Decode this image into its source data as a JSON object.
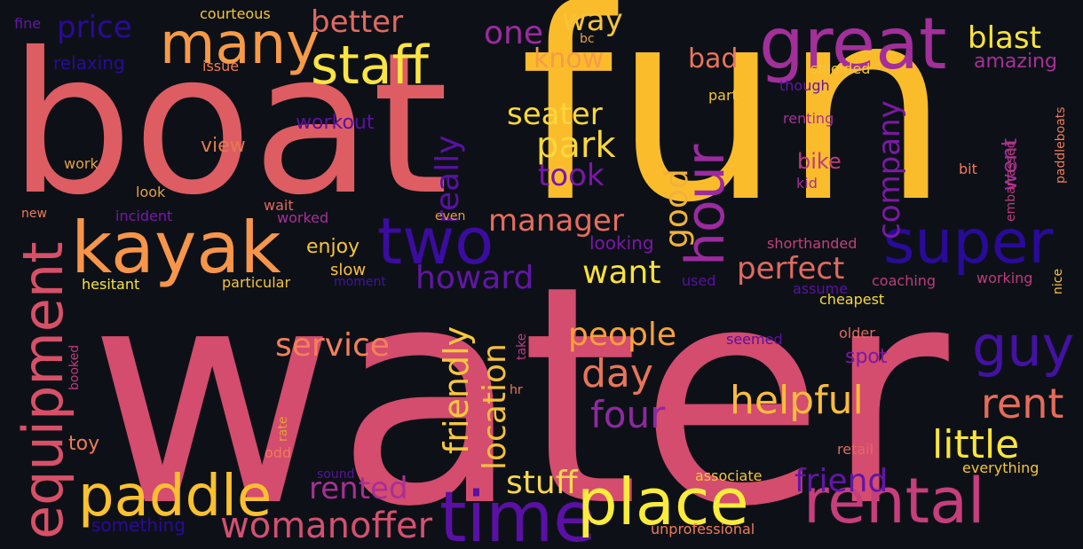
{
  "words": [
    {
      "text": "water",
      "color": "#d44c6e",
      "size": 340,
      "vertical": false
    },
    {
      "text": "fun",
      "color": "#fbbc2c",
      "size": 300,
      "vertical": false
    },
    {
      "text": "boat",
      "color": "#dd5d63",
      "size": 220,
      "vertical": false
    },
    {
      "text": "great",
      "color": "#a32f9b",
      "size": 80,
      "vertical": false
    },
    {
      "text": "many",
      "color": "#f79a47",
      "size": 64,
      "vertical": false
    },
    {
      "text": "kayak",
      "color": "#f7954b",
      "size": 80,
      "vertical": false
    },
    {
      "text": "staff",
      "color": "#fce443",
      "size": 60,
      "vertical": false
    },
    {
      "text": "two",
      "color": "#3a0ca0",
      "size": 72,
      "vertical": false
    },
    {
      "text": "super",
      "color": "#2a0a9a",
      "size": 68,
      "vertical": false
    },
    {
      "text": "hour",
      "color": "#9c2aa0",
      "size": 60,
      "vertical": true
    },
    {
      "text": "equipment",
      "color": "#d85068",
      "size": 62,
      "vertical": true
    },
    {
      "text": "paddle",
      "color": "#fcc030",
      "size": 64,
      "vertical": false
    },
    {
      "text": "time",
      "color": "#5a10a5",
      "size": 78,
      "vertical": false
    },
    {
      "text": "place",
      "color": "#faec3c",
      "size": 72,
      "vertical": false
    },
    {
      "text": "rental",
      "color": "#c63f7c",
      "size": 70,
      "vertical": false
    },
    {
      "text": "guy",
      "color": "#4312a2",
      "size": 62,
      "vertical": false
    },
    {
      "text": "rent",
      "color": "#e56c59",
      "size": 46,
      "vertical": false
    },
    {
      "text": "little",
      "color": "#fae43c",
      "size": 44,
      "vertical": false
    },
    {
      "text": "helpful",
      "color": "#fbbc3c",
      "size": 44,
      "vertical": false
    },
    {
      "text": "four",
      "color": "#8e29a0",
      "size": 42,
      "vertical": false
    },
    {
      "text": "day",
      "color": "#e97559",
      "size": 44,
      "vertical": false
    },
    {
      "text": "people",
      "color": "#fca03c",
      "size": 36,
      "vertical": false
    },
    {
      "text": "service",
      "color": "#f3805a",
      "size": 36,
      "vertical": false
    },
    {
      "text": "friendly",
      "color": "#f9c83c",
      "size": 38,
      "vertical": true
    },
    {
      "text": "location",
      "color": "#f7c03c",
      "size": 36,
      "vertical": true
    },
    {
      "text": "really",
      "color": "#5a10a5",
      "size": 36,
      "vertical": true
    },
    {
      "text": "good",
      "color": "#f1b23a",
      "size": 36,
      "vertical": true
    },
    {
      "text": "company",
      "color": "#7a1aa5",
      "size": 34,
      "vertical": true
    },
    {
      "text": "went",
      "color": "#a12e98",
      "size": 24,
      "vertical": true
    },
    {
      "text": "seater",
      "color": "#fbd83c",
      "size": 34,
      "vertical": false
    },
    {
      "text": "park",
      "color": "#fad83c",
      "size": 40,
      "vertical": false
    },
    {
      "text": "took",
      "color": "#7a18a8",
      "size": 34,
      "vertical": false
    },
    {
      "text": "manager",
      "color": "#e66c5e",
      "size": 34,
      "vertical": false
    },
    {
      "text": "want",
      "color": "#fbe03a",
      "size": 36,
      "vertical": false
    },
    {
      "text": "howard",
      "color": "#6216a8",
      "size": 36,
      "vertical": false
    },
    {
      "text": "perfect",
      "color": "#e06a62",
      "size": 34,
      "vertical": false
    },
    {
      "text": "stuff",
      "color": "#fbd84a",
      "size": 36,
      "vertical": false
    },
    {
      "text": "friend",
      "color": "#6216a8",
      "size": 36,
      "vertical": false
    },
    {
      "text": "womanoffer",
      "color": "#d55070",
      "size": 40,
      "vertical": false
    },
    {
      "text": "rented",
      "color": "#a82f98",
      "size": 34,
      "vertical": false
    },
    {
      "text": "better",
      "color": "#e06a62",
      "size": 34,
      "vertical": false
    },
    {
      "text": "price",
      "color": "#2a0a9a",
      "size": 34,
      "vertical": false
    },
    {
      "text": "one",
      "color": "#9c2aa0",
      "size": 36,
      "vertical": false
    },
    {
      "text": "way",
      "color": "#f6c43c",
      "size": 34,
      "vertical": false
    },
    {
      "text": "know",
      "color": "#f79a47",
      "size": 30,
      "vertical": false
    },
    {
      "text": "bad",
      "color": "#e97559",
      "size": 30,
      "vertical": false
    },
    {
      "text": "blast",
      "color": "#fae43c",
      "size": 34,
      "vertical": false
    },
    {
      "text": "amazing",
      "color": "#a82f98",
      "size": 22,
      "vertical": false
    },
    {
      "text": "bike",
      "color": "#bd3b80",
      "size": 24,
      "vertical": false
    },
    {
      "text": "spot",
      "color": "#7a18a8",
      "size": 22,
      "vertical": false
    },
    {
      "text": "enjoy",
      "color": "#f6c43c",
      "size": 22,
      "vertical": false
    },
    {
      "text": "slow",
      "color": "#fbc040",
      "size": 18,
      "vertical": false
    },
    {
      "text": "view",
      "color": "#e47a4e",
      "size": 22,
      "vertical": false
    },
    {
      "text": "workout",
      "color": "#5a10a5",
      "size": 22,
      "vertical": false
    },
    {
      "text": "looking",
      "color": "#7a18a8",
      "size": 20,
      "vertical": false
    },
    {
      "text": "relaxing",
      "color": "#2a0a9a",
      "size": 20,
      "vertical": false
    },
    {
      "text": "courteous",
      "color": "#f6c43c",
      "size": 16,
      "vertical": false
    },
    {
      "text": "fine",
      "color": "#6216a8",
      "size": 16,
      "vertical": false
    },
    {
      "text": "issue",
      "color": "#f07a5a",
      "size": 16,
      "vertical": false
    },
    {
      "text": "bc",
      "color": "#e6a040",
      "size": 14,
      "vertical": false
    },
    {
      "text": "shielded",
      "color": "#f6c43c",
      "size": 16,
      "vertical": false
    },
    {
      "text": "part",
      "color": "#f6c43c",
      "size": 16,
      "vertical": false
    },
    {
      "text": "though",
      "color": "#6216a8",
      "size": 16,
      "vertical": false
    },
    {
      "text": "renting",
      "color": "#a82f98",
      "size": 16,
      "vertical": false
    },
    {
      "text": "paddleboats",
      "color": "#f07a5a",
      "size": 14,
      "vertical": true
    },
    {
      "text": "embarrassed",
      "color": "#bd3b80",
      "size": 14,
      "vertical": true
    },
    {
      "text": "bit",
      "color": "#f07a5a",
      "size": 16,
      "vertical": false
    },
    {
      "text": "kid",
      "color": "#a82f98",
      "size": 16,
      "vertical": false
    },
    {
      "text": "work",
      "color": "#e6a040",
      "size": 16,
      "vertical": false
    },
    {
      "text": "look",
      "color": "#e6a040",
      "size": 16,
      "vertical": false
    },
    {
      "text": "wait",
      "color": "#e06a62",
      "size": 16,
      "vertical": false
    },
    {
      "text": "worked",
      "color": "#a82f98",
      "size": 16,
      "vertical": false
    },
    {
      "text": "even",
      "color": "#e6a040",
      "size": 14,
      "vertical": false
    },
    {
      "text": "new",
      "color": "#f07a5a",
      "size": 14,
      "vertical": false
    },
    {
      "text": "incident",
      "color": "#7a18a8",
      "size": 16,
      "vertical": false
    },
    {
      "text": "hesitant",
      "color": "#fae43c",
      "size": 16,
      "vertical": false
    },
    {
      "text": "particular",
      "color": "#f6c43c",
      "size": 16,
      "vertical": false
    },
    {
      "text": "moment",
      "color": "#4312a2",
      "size": 14,
      "vertical": false
    },
    {
      "text": "used",
      "color": "#5a10a5",
      "size": 16,
      "vertical": false
    },
    {
      "text": "assume",
      "color": "#5a10a5",
      "size": 16,
      "vertical": false
    },
    {
      "text": "shorthanded",
      "color": "#c63f7c",
      "size": 16,
      "vertical": false
    },
    {
      "text": "coaching",
      "color": "#bd3b80",
      "size": 16,
      "vertical": false
    },
    {
      "text": "working",
      "color": "#bd3b80",
      "size": 16,
      "vertical": false
    },
    {
      "text": "nice",
      "color": "#f6c43c",
      "size": 14,
      "vertical": true
    },
    {
      "text": "cheapest",
      "color": "#fad83c",
      "size": 16,
      "vertical": false
    },
    {
      "text": "seemed",
      "color": "#5a10a5",
      "size": 16,
      "vertical": false
    },
    {
      "text": "older",
      "color": "#e06a62",
      "size": 16,
      "vertical": false
    },
    {
      "text": "booked",
      "color": "#bd3b80",
      "size": 14,
      "vertical": true
    },
    {
      "text": "take",
      "color": "#bd3b80",
      "size": 14,
      "vertical": true
    },
    {
      "text": "hr",
      "color": "#f07a5a",
      "size": 14,
      "vertical": false
    },
    {
      "text": "rate",
      "color": "#e6a040",
      "size": 14,
      "vertical": true
    },
    {
      "text": "toy",
      "color": "#f07a5a",
      "size": 22,
      "vertical": false
    },
    {
      "text": "odd",
      "color": "#f07a5a",
      "size": 16,
      "vertical": false
    },
    {
      "text": "sound",
      "color": "#5a10a5",
      "size": 14,
      "vertical": false
    },
    {
      "text": "something",
      "color": "#2a0a9a",
      "size": 20,
      "vertical": false
    },
    {
      "text": "unprofessional",
      "color": "#f07a5a",
      "size": 16,
      "vertical": false
    },
    {
      "text": "associate",
      "color": "#f6c43c",
      "size": 16,
      "vertical": false
    },
    {
      "text": "retail",
      "color": "#e06a62",
      "size": 16,
      "vertical": false
    },
    {
      "text": "everything",
      "color": "#f6c43c",
      "size": 16,
      "vertical": false
    }
  ]
}
